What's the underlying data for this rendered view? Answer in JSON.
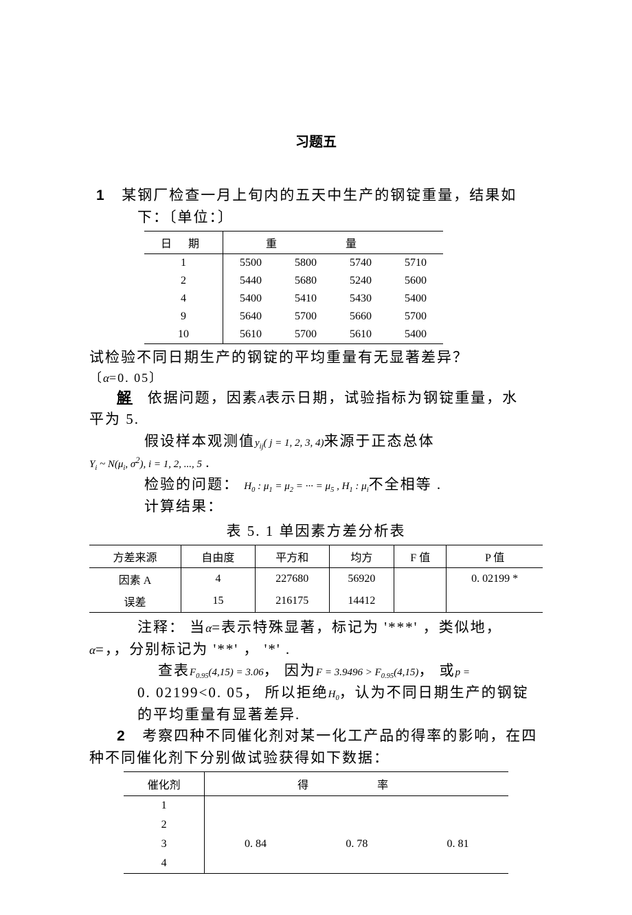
{
  "title": "习题五",
  "q1": {
    "num": "1",
    "intro_a": "某钢厂检查一月上旬内的五天中生产的钢锭重量，结果如",
    "intro_b": "下：〔单位：〕",
    "table": {
      "col_date": "日 期",
      "col_weight": "重量",
      "rows": [
        {
          "d": "1",
          "v": [
            "5500",
            "5800",
            "5740",
            "5710"
          ]
        },
        {
          "d": "2",
          "v": [
            "5440",
            "5680",
            "5240",
            "5600"
          ]
        },
        {
          "d": "4",
          "v": [
            "5400",
            "5410",
            "5430",
            "5400"
          ]
        },
        {
          "d": "9",
          "v": [
            "5640",
            "5700",
            "5660",
            "5700"
          ]
        },
        {
          "d": "10",
          "v": [
            "5610",
            "5700",
            "5610",
            "5400"
          ]
        }
      ]
    },
    "t1": "试检验不同日期生产的钢锭的平均重量有无显著差异？",
    "alpha_line_pre": "〔",
    "alpha_line_post": "=0. 05〕",
    "sol_label": "解",
    "sol_1": "依据问题，因素",
    "sol_1b": "表示日期，试验指标为钢锭重量，水",
    "sol_1c": "平为 5.",
    "sol_2a": "假设样本观测值",
    "sol_2b": "来源于正态总体",
    "sol_3a": "检验的问题：",
    "sol_3b": "不全相等  .",
    "sol_4": "计算结果：",
    "anova_caption": "表 5. 1    单因素方差分析表",
    "anova": {
      "cols": [
        "方差来源",
        "自由度",
        "平方和",
        "均方",
        "F 值",
        "P 值"
      ],
      "rows": [
        [
          "因素 A",
          "4",
          "227680",
          "56920",
          "",
          "0. 02199 *"
        ],
        [
          "误差",
          "15",
          "216175",
          "14412",
          "",
          ""
        ]
      ]
    },
    "note_a": "注释：  当",
    "note_b": "=表示特殊显著，标记为  '***' ，类似地，",
    "note_c": "=，，分别标记为  '**'  ， '*'  .",
    "look_a": "查表",
    "look_b": "，  因为",
    "look_c": "，  或",
    "pval": "0. 02199<0. 05，  所以拒绝",
    "rej_b": "，认为不同日期生产的钢锭",
    "rej_c": "的平均重量有显著差异.",
    "f_yij": "y<sub>ij</sub>( j = 1, 2, 3, 4)",
    "f_Yi": "Y<sub>i</sub> ~ N(μ<sub>i</sub>, σ<sup>2</sup>), i = 1, 2, ..., 5",
    "f_H0": "H<sub>0</sub> : μ<sub>1</sub> = μ<sub>2</sub> = ··· = μ<sub>5</sub> ,    H<sub>1</sub> : μ<sub>i</sub>",
    "f_F095": "F<sub>0.95</sub>(4,15) = 3.06",
    "f_Fcmp": "F = 3.9496 > F<sub>0.95</sub>(4,15)",
    "f_p": "p =",
    "f_H0s": "H<sub>0</sub>",
    "f_A": "A",
    "f_alpha": "α"
  },
  "q2": {
    "num": "2",
    "intro_a": "考察四种不同催化剂对某一化工产品的得率的影响，在四",
    "intro_b": "种不同催化剂下分别做试验获得如下数据：",
    "table": {
      "col_cat": "催化剂",
      "col_rate": "得率",
      "rows": [
        {
          "d": "1",
          "v": [
            "",
            "",
            ""
          ]
        },
        {
          "d": "2",
          "v": [
            "",
            "",
            ""
          ]
        },
        {
          "d": "3",
          "v": [
            "0. 84",
            "0. 78",
            "0. 81"
          ]
        },
        {
          "d": "4",
          "v": [
            "",
            "",
            ""
          ]
        }
      ]
    }
  }
}
